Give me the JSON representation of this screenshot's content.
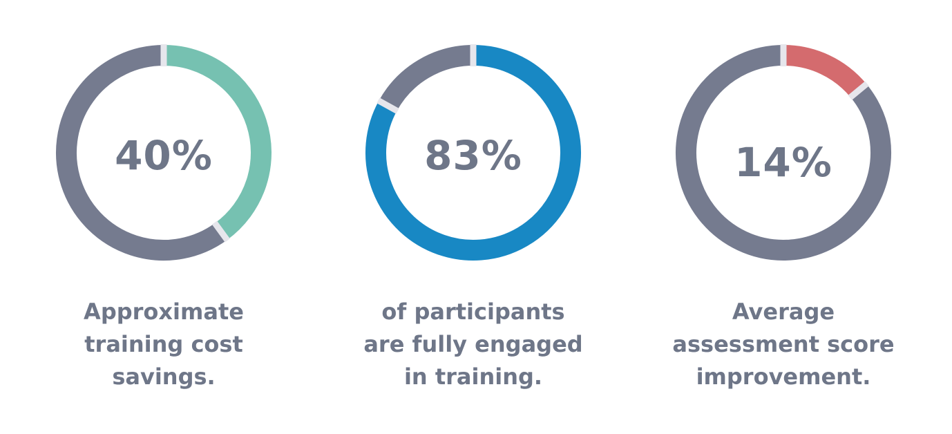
{
  "chart_data": [
    {
      "type": "donut",
      "value": 40,
      "label": "40%",
      "caption": [
        "Approximate",
        "training cost",
        "savings."
      ],
      "fill_color": "#76c1b1",
      "rest_color": "#757b8f",
      "gap_color": "#e6e6ec"
    },
    {
      "type": "donut",
      "value": 83,
      "label": "83%",
      "caption": [
        "of participants",
        "are fully engaged",
        "in training."
      ],
      "fill_color": "#1888c4",
      "rest_color": "#757b8f",
      "gap_color": "#e6e6ec"
    },
    {
      "type": "donut",
      "value": 14,
      "label": "14%",
      "caption": [
        "Average",
        "assessment score",
        "improvement."
      ],
      "fill_color": "#d46b6e",
      "rest_color": "#757b8f",
      "gap_color": "#e6e6ec"
    }
  ]
}
